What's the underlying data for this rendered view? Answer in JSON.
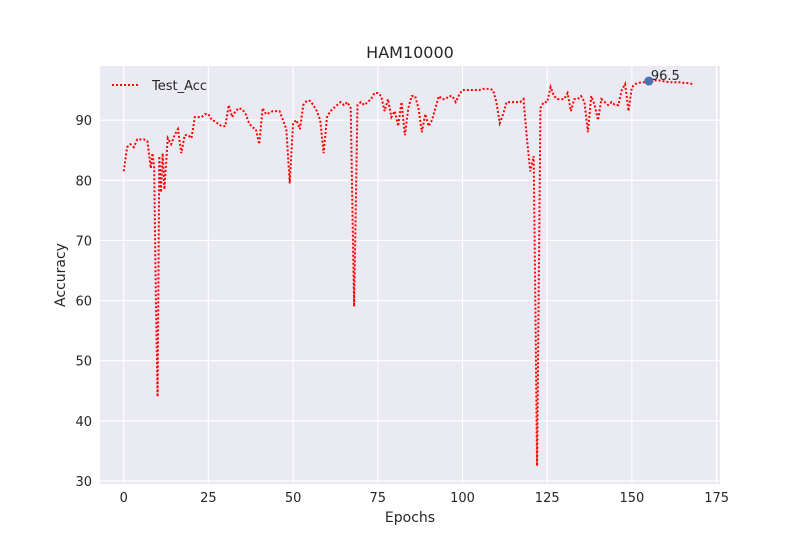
{
  "chart_data": {
    "type": "line",
    "title": "HAM10000",
    "xlabel": "Epochs",
    "ylabel": "Accuracy",
    "xlim": [
      -7,
      176
    ],
    "ylim": [
      29.5,
      99
    ],
    "xticks": [
      0,
      25,
      50,
      75,
      100,
      125,
      150,
      175
    ],
    "yticks": [
      30,
      40,
      50,
      60,
      70,
      80,
      90
    ],
    "grid": true,
    "legend_position": "top-left",
    "series": [
      {
        "name": "Test_Acc",
        "color": "#ff0000",
        "line_style": "dotted",
        "points": [
          [
            0,
            81.5
          ],
          [
            1,
            85.5
          ],
          [
            2,
            86
          ],
          [
            3,
            85.5
          ],
          [
            4,
            86.8
          ],
          [
            5,
            86.8
          ],
          [
            6,
            86.8
          ],
          [
            7,
            86.5
          ],
          [
            8,
            82
          ],
          [
            8.5,
            84.5
          ],
          [
            9,
            82
          ],
          [
            9.5,
            60
          ],
          [
            10,
            44
          ],
          [
            10.5,
            84
          ],
          [
            11,
            78
          ],
          [
            11.5,
            84.5
          ],
          [
            12,
            78.5
          ],
          [
            13,
            87
          ],
          [
            14,
            86
          ],
          [
            15,
            87.5
          ],
          [
            16,
            88.5
          ],
          [
            17,
            84.5
          ],
          [
            18,
            87.5
          ],
          [
            19,
            87.5
          ],
          [
            20,
            87
          ],
          [
            21,
            90.5
          ],
          [
            22,
            90.5
          ],
          [
            23,
            90.5
          ],
          [
            24,
            91
          ],
          [
            25,
            91
          ],
          [
            26,
            90
          ],
          [
            27,
            89.8
          ],
          [
            28,
            89.3
          ],
          [
            29,
            89
          ],
          [
            30,
            89
          ],
          [
            31,
            92.5
          ],
          [
            32,
            90.5
          ],
          [
            33,
            91.5
          ],
          [
            34,
            92
          ],
          [
            35,
            91.8
          ],
          [
            36,
            91
          ],
          [
            37,
            89.5
          ],
          [
            38,
            88.8
          ],
          [
            39,
            88.5
          ],
          [
            40,
            86
          ],
          [
            41,
            92
          ],
          [
            42,
            91
          ],
          [
            43,
            91.2
          ],
          [
            44,
            91.5
          ],
          [
            45,
            91.5
          ],
          [
            46,
            91.5
          ],
          [
            47,
            90
          ],
          [
            48,
            88.5
          ],
          [
            49,
            79.5
          ],
          [
            50,
            89.5
          ],
          [
            51,
            90
          ],
          [
            52,
            88.5
          ],
          [
            53,
            92.5
          ],
          [
            54,
            93.2
          ],
          [
            55,
            93.2
          ],
          [
            56,
            92.5
          ],
          [
            57,
            91.5
          ],
          [
            58,
            90
          ],
          [
            59,
            84.5
          ],
          [
            60,
            90.5
          ],
          [
            61,
            91.5
          ],
          [
            62,
            92
          ],
          [
            63,
            92.5
          ],
          [
            64,
            93
          ],
          [
            65,
            92.5
          ],
          [
            66,
            93
          ],
          [
            67,
            92
          ],
          [
            68,
            59
          ],
          [
            69,
            92.5
          ],
          [
            70,
            93
          ],
          [
            71,
            92.5
          ],
          [
            72,
            93
          ],
          [
            73,
            93.5
          ],
          [
            74,
            94.5
          ],
          [
            75,
            94.5
          ],
          [
            76,
            94
          ],
          [
            77,
            91.5
          ],
          [
            78,
            93.5
          ],
          [
            79,
            90.5
          ],
          [
            80,
            91.5
          ],
          [
            81,
            89
          ],
          [
            82,
            93
          ],
          [
            83,
            87.5
          ],
          [
            84,
            92
          ],
          [
            85,
            94
          ],
          [
            86,
            94
          ],
          [
            87,
            92
          ],
          [
            88,
            88
          ],
          [
            89,
            91
          ],
          [
            90,
            89
          ],
          [
            91,
            90
          ],
          [
            92,
            92
          ],
          [
            93,
            94
          ],
          [
            94,
            93.5
          ],
          [
            95,
            93.5
          ],
          [
            96,
            94
          ],
          [
            97,
            94
          ],
          [
            98,
            93
          ],
          [
            99,
            94.2
          ],
          [
            100,
            95
          ],
          [
            101,
            95
          ],
          [
            102,
            95
          ],
          [
            103,
            95
          ],
          [
            104,
            95
          ],
          [
            105,
            95
          ],
          [
            106,
            95.2
          ],
          [
            107,
            95.2
          ],
          [
            108,
            95.2
          ],
          [
            109,
            95
          ],
          [
            110,
            93
          ],
          [
            111,
            89.5
          ],
          [
            112,
            91
          ],
          [
            113,
            93
          ],
          [
            114,
            93
          ],
          [
            115,
            93
          ],
          [
            116,
            93
          ],
          [
            117,
            93
          ],
          [
            118,
            93.5
          ],
          [
            119,
            87
          ],
          [
            120,
            81.5
          ],
          [
            121,
            84
          ],
          [
            121.5,
            59.5
          ],
          [
            122,
            32.5
          ],
          [
            123,
            92
          ],
          [
            124,
            93
          ],
          [
            125,
            93
          ],
          [
            126,
            95.5
          ],
          [
            127,
            94
          ],
          [
            128,
            93.5
          ],
          [
            129,
            93.5
          ],
          [
            130,
            93.5
          ],
          [
            131,
            94.5
          ],
          [
            132,
            91.5
          ],
          [
            133,
            93.5
          ],
          [
            134,
            93.5
          ],
          [
            135,
            94
          ],
          [
            136,
            93
          ],
          [
            137,
            88
          ],
          [
            138,
            94
          ],
          [
            139,
            92.5
          ],
          [
            140,
            90
          ],
          [
            141,
            93.5
          ],
          [
            142,
            93
          ],
          [
            143,
            92.5
          ],
          [
            144,
            93
          ],
          [
            145,
            92.5
          ],
          [
            146,
            92.5
          ],
          [
            147,
            95
          ],
          [
            148,
            96
          ],
          [
            149,
            91.5
          ],
          [
            150,
            95.5
          ],
          [
            151,
            96
          ],
          [
            152,
            96.2
          ],
          [
            153,
            96.3
          ],
          [
            154,
            96.3
          ],
          [
            155,
            96.5
          ],
          [
            156,
            96.5
          ],
          [
            157,
            96.6
          ],
          [
            158,
            96.6
          ],
          [
            159,
            96.5
          ],
          [
            160,
            96.4
          ],
          [
            161,
            96.3
          ],
          [
            162,
            96.3
          ],
          [
            163,
            96.3
          ],
          [
            164,
            96.3
          ],
          [
            165,
            96.2
          ],
          [
            166,
            96.2
          ],
          [
            167,
            96.1
          ],
          [
            168,
            96
          ]
        ]
      }
    ],
    "annotation": {
      "x": 155,
      "y": 96.5,
      "label": "96.5",
      "marker_color": "#4c72b0"
    }
  }
}
